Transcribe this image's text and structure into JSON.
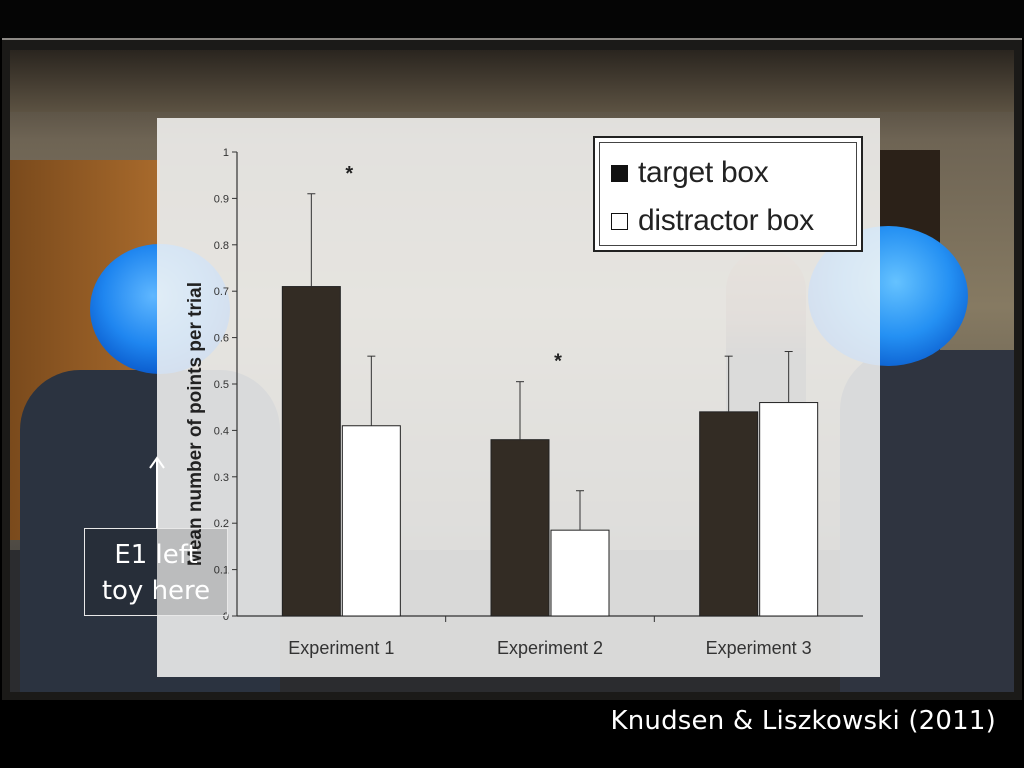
{
  "colors": {
    "target": "#332c24",
    "distractor": "#ffffff",
    "axis": "#333333"
  },
  "legend": {
    "target_label": "target box",
    "distractor_label": "distractor box"
  },
  "annotation": {
    "line1": "E1 left",
    "line2": "toy here"
  },
  "credit": "Knudsen & Liszkowski (2011)",
  "chart_data": {
    "type": "bar",
    "ylabel": "Mean number of points per trial",
    "xlabel": "",
    "title": "",
    "ylim": [
      0,
      1
    ],
    "yticks": [
      "0",
      "0.1",
      "0.2",
      "0.3",
      "0.4",
      "0.5",
      "0.6",
      "0.7",
      "0.8",
      "0.9",
      "1"
    ],
    "categories": [
      "Experiment 1",
      "Experiment 2",
      "Experiment 3"
    ],
    "series": [
      {
        "name": "target box",
        "values": [
          0.71,
          0.38,
          0.44
        ],
        "error": [
          0.2,
          0.125,
          0.12
        ]
      },
      {
        "name": "distractor box",
        "values": [
          0.41,
          0.185,
          0.46
        ],
        "error": [
          0.15,
          0.085,
          0.11
        ]
      }
    ],
    "significance": [
      "*",
      "*",
      ""
    ],
    "legend_position": "top-right",
    "grid": false
  }
}
